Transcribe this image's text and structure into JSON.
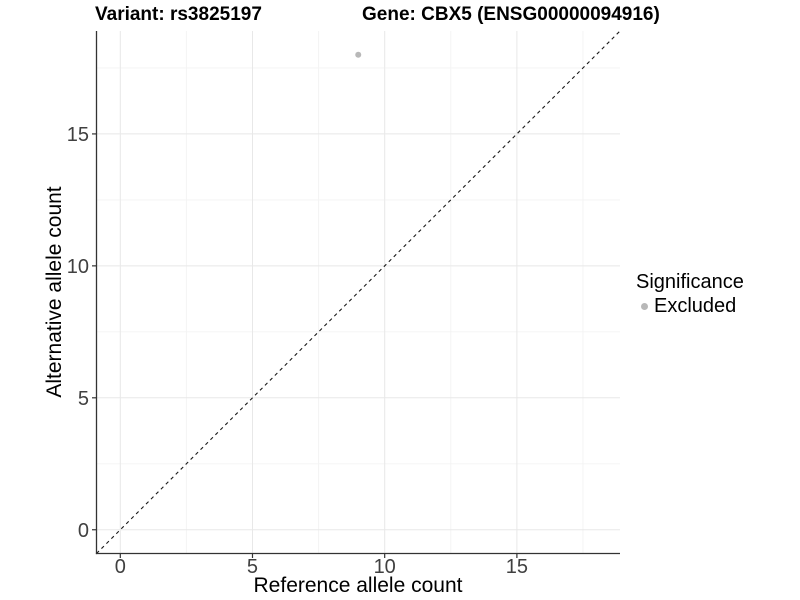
{
  "header": {
    "variant_title": "Variant: rs3825197",
    "gene_title": "Gene: CBX5 (ENSG00000094916)"
  },
  "axes": {
    "x": {
      "label": "Reference allele count",
      "ticks": [
        "0",
        "5",
        "10",
        "15"
      ]
    },
    "y": {
      "label": "Alternative allele count",
      "ticks": [
        "0",
        "5",
        "10",
        "15"
      ]
    }
  },
  "legend": {
    "title": "Significance",
    "items": [
      {
        "label": "Excluded",
        "marker_color": "#b8b8b8"
      }
    ]
  },
  "chart_data": {
    "type": "scatter",
    "title": "Variant: rs3825197 — Gene: CBX5 (ENSG00000094916)",
    "xlabel": "Reference allele count",
    "ylabel": "Alternative allele count",
    "xlim": [
      -0.9,
      18.9
    ],
    "ylim": [
      -0.9,
      18.9
    ],
    "x_major_ticks": [
      0,
      5,
      10,
      15
    ],
    "y_major_ticks": [
      0,
      5,
      10,
      15
    ],
    "x_minor_gridlines": [
      2.5,
      7.5,
      12.5,
      17.5
    ],
    "y_minor_gridlines": [
      2.5,
      7.5,
      12.5,
      17.5
    ],
    "grid": "major and minor, light gray on white",
    "legend_position": "right",
    "reference_line": {
      "type": "identity y=x",
      "from": [
        -0.9,
        -0.9
      ],
      "to": [
        18.9,
        18.9
      ],
      "style": "dashed",
      "color": "#1a1a1a"
    },
    "series": [
      {
        "name": "Excluded",
        "marker_color": "#b8b8b8",
        "points": [
          {
            "x": 9,
            "y": 18
          }
        ]
      }
    ]
  },
  "style": {
    "major_grid_color": "#e8e8e8",
    "minor_grid_color": "#f3f3f3",
    "axis_line_color": "#333333",
    "tick_color": "#333333",
    "tick_label_color": "#404040"
  }
}
